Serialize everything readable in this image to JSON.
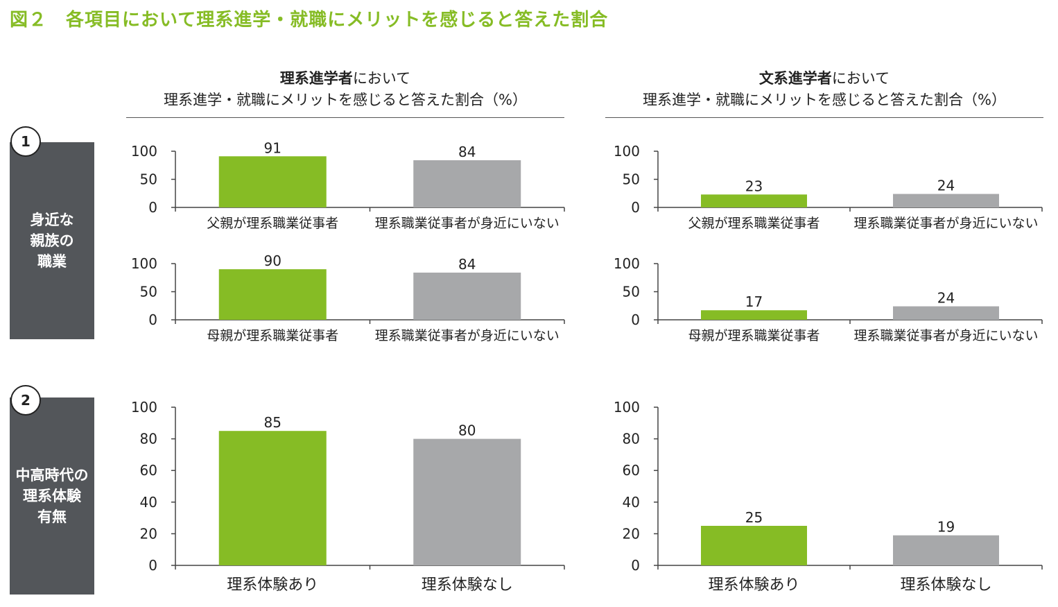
{
  "figure_title": "図２　各項目において理系進学・就職にメリットを感じると答えた割合",
  "columns": [
    {
      "head_bold": "理系進学者",
      "head_rest": "において",
      "head_line2": "理系進学・就職にメリットを感じると答えた割合（%）"
    },
    {
      "head_bold": "文系進学者",
      "head_rest": "において",
      "head_line2": "理系進学・就職にメリットを感じると答えた割合（%）"
    }
  ],
  "rows": [
    {
      "number": "1",
      "label": "身近な\n親族の\n職業"
    },
    {
      "number": "2",
      "label": "中高時代の\n理系体験\n有無"
    }
  ],
  "colors": {
    "green": "#86BC25",
    "gray": "#A7A8AA",
    "dark": "#53565A"
  },
  "chart_data": [
    {
      "type": "bar",
      "categories": [
        "父親が理系職業従事者",
        "理系職業従事者が身近にいない"
      ],
      "values": [
        91,
        84
      ],
      "ylim": [
        0,
        100
      ],
      "yticks": [
        "0",
        "50",
        "100"
      ]
    },
    {
      "type": "bar",
      "categories": [
        "母親が理系職業従事者",
        "理系職業従事者が身近にいない"
      ],
      "values": [
        90,
        84
      ],
      "ylim": [
        0,
        100
      ],
      "yticks": [
        "0",
        "50",
        "100"
      ]
    },
    {
      "type": "bar",
      "categories": [
        "父親が理系職業従事者",
        "理系職業従事者が身近にいない"
      ],
      "values": [
        23,
        24
      ],
      "ylim": [
        0,
        100
      ],
      "yticks": [
        "0",
        "50",
        "100"
      ]
    },
    {
      "type": "bar",
      "categories": [
        "母親が理系職業従事者",
        "理系職業従事者が身近にいない"
      ],
      "values": [
        17,
        24
      ],
      "ylim": [
        0,
        100
      ],
      "yticks": [
        "0",
        "50",
        "100"
      ]
    },
    {
      "type": "bar",
      "categories": [
        "理系体験あり",
        "理系体験なし"
      ],
      "values": [
        85,
        80
      ],
      "ylim": [
        0,
        100
      ],
      "yticks": [
        "0",
        "20",
        "40",
        "60",
        "80",
        "100"
      ]
    },
    {
      "type": "bar",
      "categories": [
        "理系体験あり",
        "理系体験なし"
      ],
      "values": [
        25,
        19
      ],
      "ylim": [
        0,
        100
      ],
      "yticks": [
        "0",
        "20",
        "40",
        "60",
        "80",
        "100"
      ]
    }
  ]
}
